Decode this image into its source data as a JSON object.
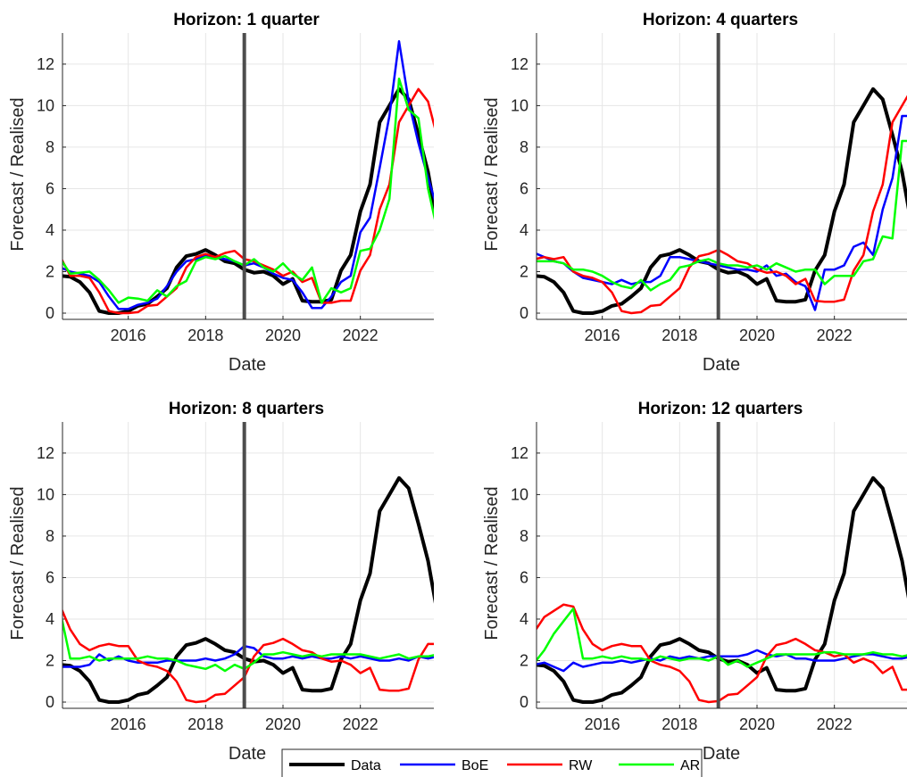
{
  "chart_data": [
    {
      "type": "line",
      "title": "Horizon: 1 quarter",
      "xlabel": "Date",
      "ylabel": "Forecast / Realised",
      "xlim": [
        2014.3,
        2023.9
      ],
      "ylim": [
        -0.3,
        13.5
      ],
      "xticks": [
        2016,
        2018,
        2020,
        2022
      ],
      "yticks": [
        0,
        2,
        4,
        6,
        8,
        10,
        12
      ],
      "grid": true,
      "vline": 2019.0,
      "x": [
        2014.25,
        2014.5,
        2014.75,
        2015.0,
        2015.25,
        2015.5,
        2015.75,
        2016.0,
        2016.25,
        2016.5,
        2016.75,
        2017.0,
        2017.25,
        2017.5,
        2017.75,
        2018.0,
        2018.25,
        2018.5,
        2018.75,
        2019.0,
        2019.25,
        2019.5,
        2019.75,
        2020.0,
        2020.25,
        2020.5,
        2020.75,
        2021.0,
        2021.25,
        2021.5,
        2021.75,
        2022.0,
        2022.25,
        2022.5,
        2022.75,
        2023.0,
        2023.25,
        2023.5,
        2023.75,
        2024.0
      ],
      "series": [
        {
          "name": "Data",
          "values": [
            1.8,
            1.75,
            1.5,
            1.0,
            0.1,
            0.0,
            0.0,
            0.1,
            0.35,
            0.45,
            0.8,
            1.2,
            2.2,
            2.75,
            2.85,
            3.05,
            2.8,
            2.5,
            2.4,
            2.1,
            1.95,
            2.0,
            1.8,
            1.4,
            1.65,
            0.6,
            0.55,
            0.55,
            0.65,
            2.05,
            2.8,
            4.9,
            6.2,
            9.2,
            10.0,
            10.8,
            10.3,
            8.6,
            6.8,
            4.2
          ]
        },
        {
          "name": "BoE",
          "values": [
            2.2,
            2.0,
            1.9,
            1.8,
            1.5,
            0.8,
            0.2,
            0.2,
            0.4,
            0.5,
            0.7,
            1.3,
            2.0,
            2.5,
            2.6,
            2.8,
            2.7,
            2.6,
            2.5,
            2.3,
            2.4,
            2.2,
            1.9,
            1.7,
            1.6,
            1.0,
            0.25,
            0.25,
            0.8,
            1.5,
            1.8,
            3.9,
            4.6,
            7.0,
            9.5,
            13.1,
            10.2,
            8.2,
            6.5,
            5.0
          ]
        },
        {
          "name": "RW",
          "values": [
            2.7,
            1.8,
            1.8,
            1.7,
            1.0,
            0.1,
            0.0,
            0.0,
            0.05,
            0.35,
            0.4,
            0.8,
            1.2,
            2.2,
            2.7,
            2.85,
            2.7,
            2.9,
            3.0,
            2.6,
            2.5,
            2.3,
            2.1,
            1.8,
            2.0,
            1.5,
            1.7,
            0.5,
            0.5,
            0.6,
            0.6,
            2.05,
            2.8,
            5.0,
            6.2,
            9.2,
            10.0,
            10.8,
            10.2,
            8.4
          ]
        },
        {
          "name": "AR",
          "values": [
            2.6,
            1.9,
            1.95,
            2.0,
            1.6,
            1.1,
            0.5,
            0.75,
            0.7,
            0.6,
            1.1,
            0.8,
            1.3,
            1.55,
            2.5,
            2.7,
            2.6,
            2.75,
            2.5,
            2.3,
            2.6,
            2.2,
            2.0,
            2.4,
            1.9,
            1.6,
            2.2,
            0.5,
            1.2,
            1.0,
            1.2,
            3.0,
            3.1,
            4.0,
            5.5,
            11.3,
            9.8,
            9.4,
            6.0,
            3.9
          ]
        }
      ]
    },
    {
      "type": "line",
      "title": "Horizon: 4 quarters",
      "xlabel": "Date",
      "ylabel": "Forecast / Realised",
      "xlim": [
        2014.3,
        2023.9
      ],
      "ylim": [
        -0.3,
        13.5
      ],
      "xticks": [
        2016,
        2018,
        2020,
        2022
      ],
      "yticks": [
        0,
        2,
        4,
        6,
        8,
        10,
        12
      ],
      "grid": true,
      "vline": 2019.0,
      "x": [
        2014.25,
        2014.5,
        2014.75,
        2015.0,
        2015.25,
        2015.5,
        2015.75,
        2016.0,
        2016.25,
        2016.5,
        2016.75,
        2017.0,
        2017.25,
        2017.5,
        2017.75,
        2018.0,
        2018.25,
        2018.5,
        2018.75,
        2019.0,
        2019.25,
        2019.5,
        2019.75,
        2020.0,
        2020.25,
        2020.5,
        2020.75,
        2021.0,
        2021.25,
        2021.5,
        2021.75,
        2022.0,
        2022.25,
        2022.5,
        2022.75,
        2023.0,
        2023.25,
        2023.5,
        2023.75,
        2024.0
      ],
      "series": [
        {
          "name": "Data",
          "values": [
            1.8,
            1.75,
            1.5,
            1.0,
            0.1,
            0.0,
            0.0,
            0.1,
            0.35,
            0.45,
            0.8,
            1.2,
            2.2,
            2.75,
            2.85,
            3.05,
            2.8,
            2.5,
            2.4,
            2.1,
            1.95,
            2.0,
            1.8,
            1.4,
            1.65,
            0.6,
            0.55,
            0.55,
            0.65,
            2.05,
            2.8,
            4.9,
            6.2,
            9.2,
            10.0,
            10.8,
            10.3,
            8.6,
            6.8,
            4.2
          ]
        },
        {
          "name": "BoE",
          "values": [
            2.9,
            2.7,
            2.5,
            2.4,
            2.0,
            1.7,
            1.6,
            1.5,
            1.4,
            1.6,
            1.4,
            1.5,
            1.5,
            1.8,
            2.7,
            2.7,
            2.6,
            2.5,
            2.4,
            2.3,
            2.2,
            2.1,
            2.1,
            2.0,
            2.3,
            1.8,
            1.9,
            1.5,
            1.3,
            0.15,
            2.1,
            2.1,
            2.3,
            3.2,
            3.4,
            2.8,
            5.0,
            6.5,
            9.5,
            9.5
          ]
        },
        {
          "name": "RW",
          "values": [
            2.6,
            2.7,
            2.6,
            2.7,
            2.0,
            1.8,
            1.7,
            1.5,
            1.0,
            0.1,
            0.0,
            0.05,
            0.35,
            0.4,
            0.8,
            1.2,
            2.2,
            2.75,
            2.85,
            3.05,
            2.8,
            2.5,
            2.4,
            2.1,
            1.95,
            2.0,
            1.8,
            1.4,
            1.65,
            0.6,
            0.55,
            0.55,
            0.65,
            2.05,
            2.8,
            4.9,
            6.2,
            9.2,
            10.0,
            10.8
          ]
        },
        {
          "name": "AR",
          "values": [
            2.5,
            2.5,
            2.5,
            2.4,
            2.1,
            2.1,
            2.0,
            1.8,
            1.5,
            1.3,
            1.2,
            1.6,
            1.1,
            1.4,
            1.6,
            2.2,
            2.3,
            2.5,
            2.6,
            2.4,
            2.3,
            2.3,
            2.2,
            2.3,
            2.1,
            2.4,
            2.2,
            2.0,
            2.1,
            2.1,
            1.4,
            1.8,
            1.8,
            1.8,
            2.5,
            2.6,
            3.7,
            3.6,
            8.3,
            8.3
          ]
        }
      ]
    },
    {
      "type": "line",
      "title": "Horizon: 8 quarters",
      "xlabel": "Date",
      "ylabel": "Forecast / Realised",
      "xlim": [
        2014.3,
        2023.9
      ],
      "ylim": [
        -0.3,
        13.5
      ],
      "xticks": [
        2016,
        2018,
        2020,
        2022
      ],
      "yticks": [
        0,
        2,
        4,
        6,
        8,
        10,
        12
      ],
      "grid": true,
      "vline": 2019.0,
      "x": [
        2014.25,
        2014.5,
        2014.75,
        2015.0,
        2015.25,
        2015.5,
        2015.75,
        2016.0,
        2016.25,
        2016.5,
        2016.75,
        2017.0,
        2017.25,
        2017.5,
        2017.75,
        2018.0,
        2018.25,
        2018.5,
        2018.75,
        2019.0,
        2019.25,
        2019.5,
        2019.75,
        2020.0,
        2020.25,
        2020.5,
        2020.75,
        2021.0,
        2021.25,
        2021.5,
        2021.75,
        2022.0,
        2022.25,
        2022.5,
        2022.75,
        2023.0,
        2023.25,
        2023.5,
        2023.75,
        2024.0
      ],
      "series": [
        {
          "name": "Data",
          "values": [
            1.8,
            1.75,
            1.5,
            1.0,
            0.1,
            0.0,
            0.0,
            0.1,
            0.35,
            0.45,
            0.8,
            1.2,
            2.2,
            2.75,
            2.85,
            3.05,
            2.8,
            2.5,
            2.4,
            2.1,
            1.95,
            2.0,
            1.8,
            1.4,
            1.65,
            0.6,
            0.55,
            0.55,
            0.65,
            2.05,
            2.8,
            4.9,
            6.2,
            9.2,
            10.0,
            10.8,
            10.3,
            8.6,
            6.8,
            4.2
          ]
        },
        {
          "name": "BoE",
          "values": [
            1.7,
            1.7,
            1.7,
            1.8,
            2.3,
            2.0,
            2.2,
            2.0,
            1.9,
            1.9,
            1.9,
            2.0,
            2.0,
            2.0,
            2.0,
            2.1,
            2.0,
            2.1,
            2.3,
            2.7,
            2.6,
            2.2,
            2.1,
            2.1,
            2.2,
            2.1,
            2.2,
            2.1,
            2.1,
            2.2,
            2.1,
            2.2,
            2.1,
            2.0,
            2.0,
            2.1,
            2.0,
            2.2,
            2.1,
            2.2
          ]
        },
        {
          "name": "RW",
          "values": [
            4.6,
            3.5,
            2.8,
            2.5,
            2.7,
            2.8,
            2.7,
            2.7,
            2.0,
            1.8,
            1.7,
            1.5,
            1.0,
            0.1,
            0.0,
            0.05,
            0.35,
            0.4,
            0.8,
            1.2,
            2.2,
            2.75,
            2.85,
            3.05,
            2.8,
            2.5,
            2.4,
            2.1,
            1.95,
            2.0,
            1.8,
            1.4,
            1.65,
            0.6,
            0.55,
            0.55,
            0.65,
            2.05,
            2.8,
            2.8
          ]
        },
        {
          "name": "AR",
          "values": [
            4.3,
            2.1,
            2.1,
            2.2,
            2.0,
            2.1,
            2.1,
            2.1,
            2.1,
            2.2,
            2.1,
            2.1,
            2.0,
            1.8,
            1.7,
            1.6,
            1.8,
            1.5,
            1.8,
            1.6,
            1.9,
            2.3,
            2.3,
            2.4,
            2.3,
            2.2,
            2.3,
            2.2,
            2.3,
            2.3,
            2.3,
            2.3,
            2.2,
            2.1,
            2.2,
            2.3,
            2.1,
            2.2,
            2.2,
            2.3
          ]
        }
      ]
    },
    {
      "type": "line",
      "title": "Horizon: 12 quarters",
      "xlabel": "Date",
      "ylabel": "Forecast / Realised",
      "xlim": [
        2014.3,
        2023.9
      ],
      "ylim": [
        -0.3,
        13.5
      ],
      "xticks": [
        2016,
        2018,
        2020,
        2022
      ],
      "yticks": [
        0,
        2,
        4,
        6,
        8,
        10,
        12
      ],
      "grid": true,
      "vline": 2019.0,
      "x": [
        2014.25,
        2014.5,
        2014.75,
        2015.0,
        2015.25,
        2015.5,
        2015.75,
        2016.0,
        2016.25,
        2016.5,
        2016.75,
        2017.0,
        2017.25,
        2017.5,
        2017.75,
        2018.0,
        2018.25,
        2018.5,
        2018.75,
        2019.0,
        2019.25,
        2019.5,
        2019.75,
        2020.0,
        2020.25,
        2020.5,
        2020.75,
        2021.0,
        2021.25,
        2021.5,
        2021.75,
        2022.0,
        2022.25,
        2022.5,
        2022.75,
        2023.0,
        2023.25,
        2023.5,
        2023.75,
        2024.0
      ],
      "series": [
        {
          "name": "Data",
          "values": [
            1.8,
            1.75,
            1.5,
            1.0,
            0.1,
            0.0,
            0.0,
            0.1,
            0.35,
            0.45,
            0.8,
            1.2,
            2.2,
            2.75,
            2.85,
            3.05,
            2.8,
            2.5,
            2.4,
            2.1,
            1.95,
            2.0,
            1.8,
            1.4,
            1.65,
            0.6,
            0.55,
            0.55,
            0.65,
            2.05,
            2.8,
            4.9,
            6.2,
            9.2,
            10.0,
            10.8,
            10.3,
            8.6,
            6.8,
            4.2
          ]
        },
        {
          "name": "BoE",
          "values": [
            1.8,
            1.9,
            1.7,
            1.5,
            1.9,
            1.7,
            1.8,
            1.9,
            1.9,
            2.0,
            1.9,
            2.0,
            2.1,
            2.0,
            2.2,
            2.1,
            2.2,
            2.1,
            2.2,
            2.2,
            2.2,
            2.2,
            2.3,
            2.5,
            2.3,
            2.2,
            2.3,
            2.1,
            2.1,
            2.0,
            2.0,
            2.0,
            2.1,
            2.2,
            2.3,
            2.3,
            2.2,
            2.1,
            2.1,
            2.2
          ]
        },
        {
          "name": "RW",
          "values": [
            3.4,
            4.1,
            4.4,
            4.7,
            4.6,
            3.5,
            2.8,
            2.5,
            2.7,
            2.8,
            2.7,
            2.7,
            2.0,
            1.8,
            1.7,
            1.5,
            1.0,
            0.1,
            0.0,
            0.05,
            0.35,
            0.4,
            0.8,
            1.2,
            2.2,
            2.75,
            2.85,
            3.05,
            2.8,
            2.5,
            2.4,
            2.2,
            2.3,
            1.9,
            2.1,
            1.9,
            1.4,
            1.7,
            0.6,
            0.6
          ]
        },
        {
          "name": "AR",
          "values": [
            1.9,
            2.5,
            3.3,
            3.9,
            4.5,
            2.1,
            2.1,
            2.2,
            2.1,
            2.2,
            2.1,
            2.1,
            2.0,
            2.2,
            2.1,
            2.0,
            2.1,
            2.1,
            2.0,
            2.2,
            1.8,
            2.0,
            1.7,
            1.9,
            2.1,
            2.3,
            2.3,
            2.3,
            2.3,
            2.3,
            2.4,
            2.4,
            2.3,
            2.3,
            2.3,
            2.4,
            2.3,
            2.3,
            2.2,
            2.3
          ]
        }
      ]
    }
  ],
  "legend": {
    "placement": "bottom-center",
    "items": [
      {
        "label": "Data",
        "color": "#000000"
      },
      {
        "label": "BoE",
        "color": "#0000ff"
      },
      {
        "label": "RW",
        "color": "#ff0000"
      },
      {
        "label": "AR",
        "color": "#00ff00"
      }
    ]
  },
  "colors": {
    "Data": "#000000",
    "BoE": "#0000ff",
    "RW": "#ff0000",
    "AR": "#00ff00",
    "vline": "#4d4d4d"
  }
}
